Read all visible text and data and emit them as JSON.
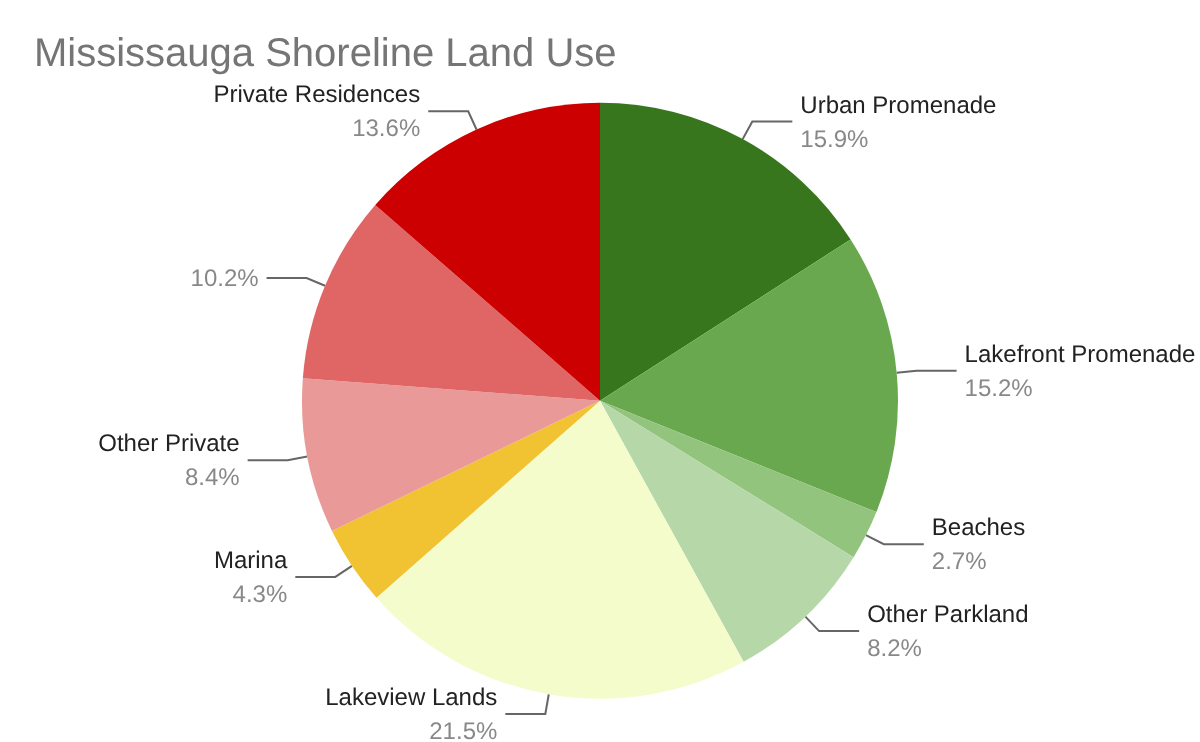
{
  "chart_data": {
    "type": "pie",
    "title": "Mississauga Shoreline Land Use",
    "categories": [
      "Urban Promenade",
      "Lakefront Promenade",
      "Beaches",
      "Other Parkland",
      "Lakeview Lands",
      "Marina",
      "Other Private",
      null,
      "Private Residences"
    ],
    "values": [
      15.9,
      15.2,
      2.7,
      8.2,
      21.5,
      4.3,
      8.4,
      10.2,
      13.6
    ],
    "value_labels": [
      "15.9%",
      "15.2%",
      "2.7%",
      "8.2%",
      "21.5%",
      "4.3%",
      "8.4%",
      "10.2%",
      "13.6%"
    ],
    "colors": [
      "#38761d",
      "#6aa84f",
      "#93c47d",
      "#b6d7a8",
      "#f4fccc",
      "#f1c232",
      "#ea9999",
      "#e06666",
      "#cc0000"
    ]
  }
}
